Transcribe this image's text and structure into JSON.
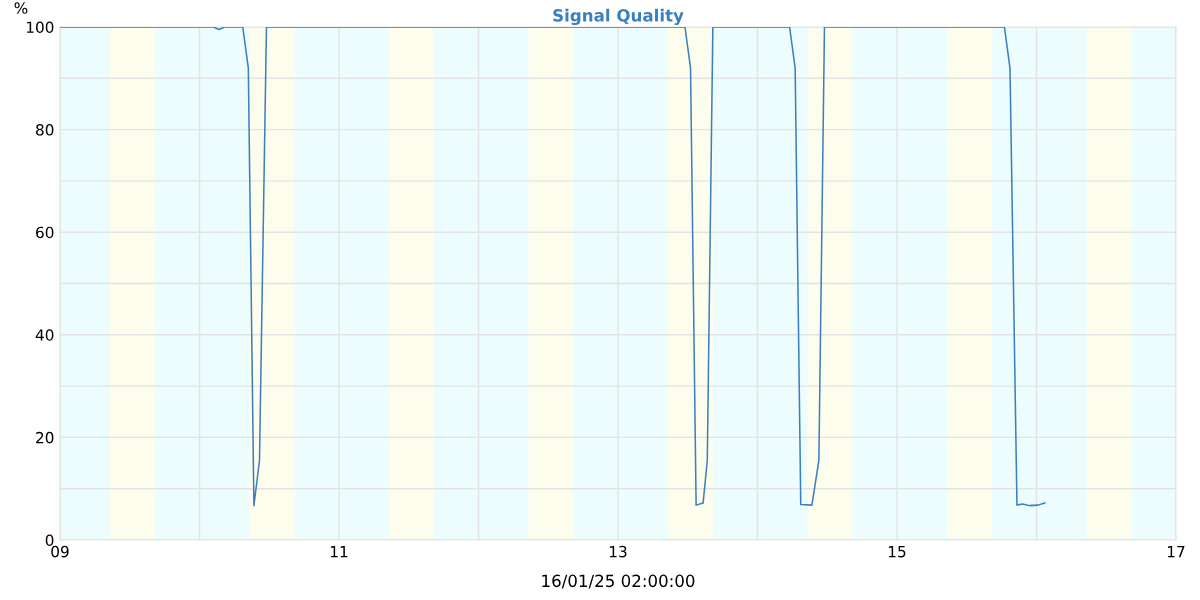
{
  "chart_data": {
    "type": "line",
    "title": "Signal Quality",
    "xlabel": "16/01/25 02:00:00",
    "ylabel": "%",
    "x": [
      9,
      10.1,
      10.14,
      10.18,
      10.31,
      10.35,
      10.39,
      10.43,
      10.48,
      13.48,
      13.52,
      13.56,
      13.61,
      13.64,
      13.68,
      14.23,
      14.27,
      14.31,
      14.39,
      14.44,
      14.48,
      15.77,
      15.81,
      15.86,
      15.9,
      15.95,
      16.01,
      16.06
    ],
    "series": [
      {
        "color": "#3a7fbf",
        "values": [
          100,
          100,
          99.5,
          100,
          100,
          92,
          6.7,
          15.5,
          100,
          100,
          92,
          6.8,
          7.2,
          15.5,
          100,
          100,
          92,
          6.9,
          6.8,
          15.5,
          100,
          100,
          92,
          6.8,
          7,
          6.7,
          6.8,
          7.2
        ]
      }
    ],
    "xlim": [
      9,
      17
    ],
    "xticks": [
      {
        "value": 9,
        "label": "09"
      },
      {
        "value": 10,
        "label": null
      },
      11,
      {
        "value": 12,
        "label": null
      },
      13,
      {
        "value": 14,
        "label": null
      },
      15,
      {
        "value": 16,
        "label": null
      },
      17
    ],
    "ylim": [
      0,
      100
    ],
    "yticks": [
      0,
      {
        "value": 10,
        "label": null
      },
      20,
      {
        "value": 30,
        "label": null
      },
      40,
      {
        "value": 50,
        "label": null
      },
      60,
      {
        "value": 70,
        "label": null
      },
      80,
      {
        "value": 90,
        "label": null
      },
      100
    ],
    "grid": true,
    "marker": "none",
    "line_style": "solid",
    "bands": [
      {
        "axis": "x",
        "from": 9,
        "to": 9.36,
        "color": "#edfcfc"
      },
      {
        "axis": "x",
        "from": 9.36,
        "to": 9.68,
        "color": "#fdfdee"
      },
      {
        "axis": "x",
        "from": 9.68,
        "to": 10.36,
        "color": "#edfcfc"
      },
      {
        "axis": "x",
        "from": 10.36,
        "to": 10.68,
        "color": "#fdfdee"
      },
      {
        "axis": "x",
        "from": 10.68,
        "to": 11.36,
        "color": "#edfcfc"
      },
      {
        "axis": "x",
        "from": 11.36,
        "to": 11.68,
        "color": "#fdfdee"
      },
      {
        "axis": "x",
        "from": 11.68,
        "to": 12.36,
        "color": "#edfcfc"
      },
      {
        "axis": "x",
        "from": 12.36,
        "to": 12.68,
        "color": "#fdfdee"
      },
      {
        "axis": "x",
        "from": 12.68,
        "to": 13.36,
        "color": "#edfcfc"
      },
      {
        "axis": "x",
        "from": 13.36,
        "to": 13.68,
        "color": "#fdfdee"
      },
      {
        "axis": "x",
        "from": 13.68,
        "to": 14.36,
        "color": "#edfcfc"
      },
      {
        "axis": "x",
        "from": 14.36,
        "to": 14.68,
        "color": "#fdfdee"
      },
      {
        "axis": "x",
        "from": 14.68,
        "to": 15.36,
        "color": "#edfcfc"
      },
      {
        "axis": "x",
        "from": 15.36,
        "to": 15.68,
        "color": "#fdfdee"
      },
      {
        "axis": "x",
        "from": 15.68,
        "to": 16.36,
        "color": "#edfcfc"
      },
      {
        "axis": "x",
        "from": 16.36,
        "to": 16.68,
        "color": "#fdfdee"
      },
      {
        "axis": "x",
        "from": 16.68,
        "to": 17,
        "color": "#edfcfc"
      }
    ]
  }
}
